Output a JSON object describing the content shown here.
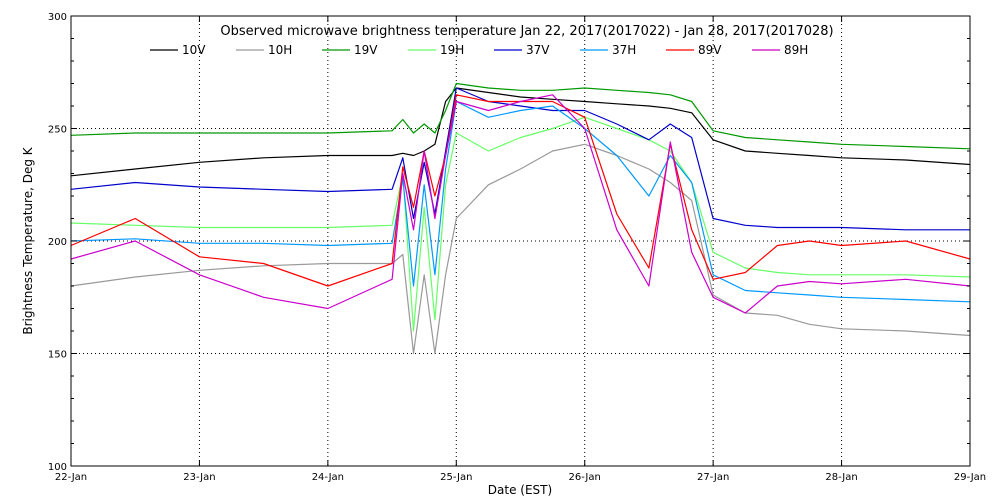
{
  "chart_data": {
    "type": "line",
    "title": "Observed microwave brightness temperature Jan 22, 2017(2017022) - Jan 28, 2017(2017028)",
    "xlabel": "Date (EST)",
    "ylabel": "Brightness Temperature, Deg K",
    "xlim": [
      "22-Jan",
      "29-Jan"
    ],
    "ylim": [
      100,
      300
    ],
    "grid": true,
    "legend_position": "top",
    "x_ticks": [
      "22-Jan",
      "23-Jan",
      "24-Jan",
      "25-Jan",
      "26-Jan",
      "27-Jan",
      "28-Jan",
      "29-Jan"
    ],
    "y_ticks": [
      100,
      150,
      200,
      250,
      300
    ],
    "x": [
      "22-Jan 00:00",
      "22-Jan 12:00",
      "23-Jan 00:00",
      "23-Jan 12:00",
      "24-Jan 00:00",
      "24-Jan 12:00",
      "24-Jan 14:00",
      "24-Jan 16:00",
      "24-Jan 18:00",
      "24-Jan 20:00",
      "24-Jan 22:00",
      "25-Jan 00:00",
      "25-Jan 06:00",
      "25-Jan 12:00",
      "25-Jan 18:00",
      "26-Jan 00:00",
      "26-Jan 06:00",
      "26-Jan 12:00",
      "26-Jan 16:00",
      "26-Jan 20:00",
      "27-Jan 00:00",
      "27-Jan 06:00",
      "27-Jan 12:00",
      "27-Jan 18:00",
      "28-Jan 00:00",
      "28-Jan 12:00",
      "29-Jan 00:00"
    ],
    "series": [
      {
        "name": "10V",
        "color": "#000000",
        "values": [
          229,
          232,
          235,
          237,
          238,
          238,
          239,
          238,
          240,
          243,
          262,
          268,
          266,
          264,
          263,
          262,
          261,
          260,
          259,
          257,
          245,
          240,
          239,
          238,
          237,
          236,
          234
        ]
      },
      {
        "name": "10H",
        "color": "#999999",
        "values": [
          180,
          184,
          187,
          189,
          190,
          190,
          194,
          150,
          185,
          150,
          185,
          210,
          225,
          232,
          240,
          243,
          238,
          232,
          226,
          218,
          176,
          168,
          167,
          163,
          161,
          160,
          158
        ]
      },
      {
        "name": "19V",
        "color": "#009900",
        "values": [
          247,
          248,
          248,
          248,
          248,
          249,
          254,
          248,
          252,
          248,
          258,
          270,
          268,
          267,
          267,
          268,
          267,
          266,
          265,
          262,
          249,
          246,
          245,
          244,
          243,
          242,
          241
        ]
      },
      {
        "name": "19H",
        "color": "#66ff66",
        "values": [
          208,
          207,
          206,
          206,
          206,
          207,
          230,
          160,
          215,
          165,
          225,
          248,
          240,
          246,
          250,
          255,
          250,
          245,
          240,
          226,
          195,
          188,
          186,
          185,
          185,
          185,
          184
        ]
      },
      {
        "name": "37V",
        "color": "#0000cc",
        "values": [
          223,
          226,
          224,
          223,
          222,
          223,
          237,
          210,
          235,
          212,
          240,
          268,
          262,
          260,
          258,
          258,
          252,
          245,
          252,
          246,
          210,
          207,
          206,
          206,
          206,
          205,
          205
        ]
      },
      {
        "name": "37H",
        "color": "#0099ff",
        "values": [
          200,
          201,
          199,
          199,
          198,
          199,
          228,
          180,
          225,
          185,
          232,
          262,
          255,
          258,
          260,
          250,
          238,
          220,
          238,
          226,
          185,
          178,
          177,
          176,
          175,
          174,
          173
        ]
      },
      {
        "name": "89V",
        "color": "#ff0000",
        "values": [
          198,
          210,
          193,
          190,
          180,
          190,
          233,
          215,
          240,
          220,
          238,
          265,
          262,
          262,
          262,
          255,
          212,
          188,
          243,
          205,
          183,
          186,
          198,
          200,
          198,
          200,
          192
        ]
      },
      {
        "name": "89H",
        "color": "#cc00cc",
        "values": [
          192,
          200,
          185,
          175,
          170,
          183,
          230,
          205,
          240,
          210,
          238,
          262,
          258,
          262,
          265,
          250,
          205,
          180,
          244,
          195,
          175,
          168,
          180,
          182,
          181,
          183,
          180
        ]
      }
    ]
  }
}
